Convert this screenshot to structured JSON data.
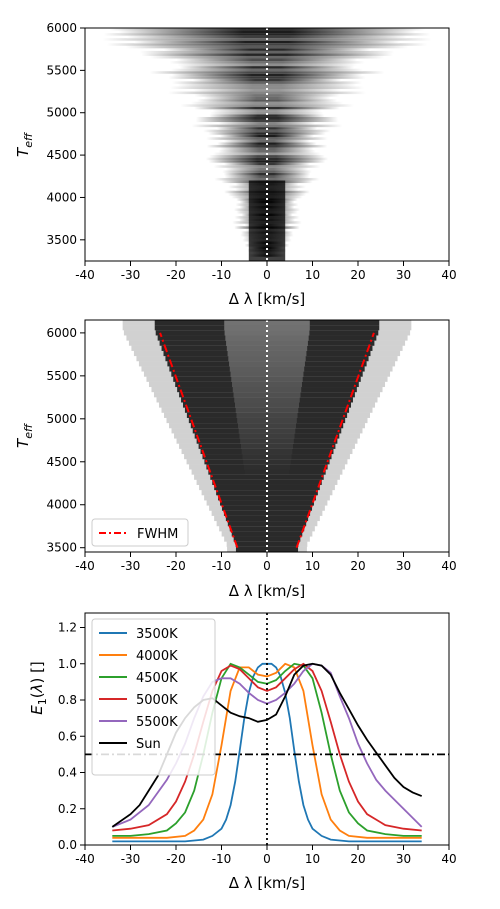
{
  "colors": {
    "tab_blue": "#1f77b4",
    "tab_orange": "#ff7f0e",
    "tab_green": "#2ca02c",
    "tab_red": "#d62728",
    "tab_purple": "#9467bd",
    "black": "#000000",
    "fwhm_red": "#ff0000"
  },
  "chart_data": [
    {
      "type": "heatmap",
      "colormap": "white-to-black (gray_r)",
      "xlabel": "Δ λ [km/s]",
      "ylabel": "T_eff",
      "xlim": [
        -40,
        40
      ],
      "ylim": [
        3250,
        6000
      ],
      "xticks": [
        "-40",
        "-30",
        "-20",
        "-10",
        "0",
        "10",
        "20",
        "30",
        "40"
      ],
      "yticks": [
        "3500",
        "4000",
        "4500",
        "5000",
        "5500",
        "6000"
      ],
      "reference_line": {
        "x": 0,
        "style": "dotted white"
      },
      "description_values": {
        "teff_range": [
          3300,
          6000
        ],
        "half_width_kms_at_teff": [
          [
            3300,
            4
          ],
          [
            4000,
            8
          ],
          [
            5000,
            15
          ],
          [
            6000,
            33
          ]
        ]
      }
    },
    {
      "type": "heatmap",
      "colormap": "white-to-black (gray_r)",
      "xlabel": "Δ λ [km/s]",
      "ylabel": "T_eff",
      "xlim": [
        -40,
        40
      ],
      "ylim": [
        3450,
        6150
      ],
      "xticks": [
        "-40",
        "-30",
        "-20",
        "-10",
        "0",
        "10",
        "20",
        "30",
        "40"
      ],
      "yticks": [
        "3500",
        "4000",
        "4500",
        "5000",
        "5500",
        "6000"
      ],
      "reference_line": {
        "x": 0,
        "style": "dotted white"
      },
      "series": [
        {
          "name": "FWHM",
          "style": "dash-dot red",
          "left": {
            "x": [
              -6.5,
              -23.5
            ],
            "y": [
              3500,
              6000
            ]
          },
          "right": {
            "x": [
              6.5,
              23.5
            ],
            "y": [
              3500,
              6000
            ]
          }
        }
      ],
      "legend": {
        "position": "lower-left",
        "entries": [
          "FWHM"
        ]
      }
    },
    {
      "type": "line",
      "xlabel": "Δ λ [km/s]",
      "ylabel": "E_1(λ) []",
      "xlim": [
        -40,
        40
      ],
      "ylim": [
        0,
        1.28
      ],
      "xticks": [
        "-40",
        "-30",
        "-20",
        "-10",
        "0",
        "10",
        "20",
        "30",
        "40"
      ],
      "yticks": [
        "0.0",
        "0.2",
        "0.4",
        "0.6",
        "0.8",
        "1.0",
        "1.2"
      ],
      "hline": {
        "y": 0.5,
        "style": "dash-dot black"
      },
      "vline": {
        "x": 0,
        "style": "dotted black"
      },
      "legend": {
        "position": "top-left"
      },
      "series": [
        {
          "name": "3500K",
          "color": "#1f77b4",
          "x": [
            -34,
            -30,
            -26,
            -22,
            -18,
            -14,
            -12,
            -10,
            -9,
            -8,
            -7,
            -6,
            -5,
            -4,
            -3,
            -2,
            -1,
            0,
            1,
            2,
            3,
            4,
            5,
            6,
            7,
            8,
            9,
            10,
            12,
            14,
            18,
            22,
            26,
            30,
            34
          ],
          "y": [
            0.02,
            0.02,
            0.02,
            0.02,
            0.02,
            0.03,
            0.05,
            0.09,
            0.14,
            0.22,
            0.35,
            0.52,
            0.7,
            0.84,
            0.93,
            0.98,
            1.0,
            1.0,
            1.0,
            0.98,
            0.93,
            0.84,
            0.7,
            0.52,
            0.35,
            0.22,
            0.14,
            0.09,
            0.05,
            0.03,
            0.02,
            0.02,
            0.02,
            0.02,
            0.02
          ]
        },
        {
          "name": "4000K",
          "color": "#ff7f0e",
          "x": [
            -34,
            -30,
            -26,
            -22,
            -18,
            -16,
            -14,
            -12,
            -10,
            -8,
            -6,
            -4,
            -2,
            0,
            2,
            4,
            6,
            8,
            10,
            12,
            14,
            16,
            18,
            22,
            26,
            30,
            34
          ],
          "y": [
            0.04,
            0.04,
            0.04,
            0.04,
            0.05,
            0.08,
            0.14,
            0.28,
            0.55,
            0.85,
            0.98,
            0.98,
            0.94,
            0.93,
            0.95,
            1.0,
            0.98,
            0.85,
            0.55,
            0.28,
            0.14,
            0.08,
            0.05,
            0.04,
            0.04,
            0.04,
            0.04
          ]
        },
        {
          "name": "4500K",
          "color": "#2ca02c",
          "x": [
            -34,
            -30,
            -26,
            -22,
            -20,
            -18,
            -16,
            -14,
            -12,
            -10,
            -8,
            -6,
            -4,
            -2,
            0,
            2,
            4,
            6,
            8,
            10,
            12,
            14,
            16,
            18,
            20,
            22,
            26,
            30,
            34
          ],
          "y": [
            0.05,
            0.05,
            0.06,
            0.08,
            0.12,
            0.18,
            0.3,
            0.5,
            0.73,
            0.92,
            1.0,
            0.98,
            0.94,
            0.9,
            0.89,
            0.91,
            0.96,
            1.0,
            0.99,
            0.92,
            0.73,
            0.5,
            0.3,
            0.18,
            0.12,
            0.08,
            0.06,
            0.05,
            0.05
          ]
        },
        {
          "name": "5000K",
          "color": "#d62728",
          "x": [
            -34,
            -30,
            -26,
            -22,
            -20,
            -18,
            -16,
            -14,
            -12,
            -10,
            -8,
            -6,
            -4,
            -2,
            0,
            2,
            4,
            6,
            8,
            10,
            12,
            14,
            16,
            18,
            20,
            22,
            26,
            30,
            34
          ],
          "y": [
            0.08,
            0.09,
            0.11,
            0.17,
            0.24,
            0.35,
            0.5,
            0.68,
            0.85,
            0.96,
            0.99,
            0.97,
            0.92,
            0.87,
            0.85,
            0.87,
            0.92,
            0.97,
            1.0,
            0.96,
            0.85,
            0.68,
            0.5,
            0.35,
            0.24,
            0.17,
            0.11,
            0.09,
            0.08
          ]
        },
        {
          "name": "5500K",
          "color": "#9467bd",
          "x": [
            -34,
            -30,
            -26,
            -22,
            -20,
            -18,
            -16,
            -14,
            -12,
            -10,
            -8,
            -6,
            -4,
            -2,
            0,
            2,
            4,
            6,
            8,
            10,
            12,
            14,
            16,
            18,
            20,
            22,
            24,
            26,
            30,
            34
          ],
          "y": [
            0.1,
            0.14,
            0.22,
            0.36,
            0.45,
            0.56,
            0.7,
            0.82,
            0.9,
            0.92,
            0.92,
            0.89,
            0.84,
            0.8,
            0.78,
            0.8,
            0.84,
            0.89,
            0.96,
            1.0,
            0.99,
            0.95,
            0.82,
            0.7,
            0.56,
            0.45,
            0.36,
            0.3,
            0.2,
            0.1
          ]
        },
        {
          "name": "Sun",
          "color": "#000000",
          "x": [
            -34,
            -30,
            -28,
            -26,
            -24,
            -22,
            -20,
            -18,
            -16,
            -14,
            -12,
            -10,
            -8,
            -6,
            -4,
            -2,
            0,
            2,
            4,
            6,
            8,
            10,
            12,
            14,
            16,
            18,
            20,
            22,
            24,
            26,
            28,
            30,
            32,
            34
          ],
          "y": [
            0.1,
            0.17,
            0.22,
            0.3,
            0.38,
            0.5,
            0.62,
            0.7,
            0.76,
            0.8,
            0.81,
            0.77,
            0.73,
            0.71,
            0.7,
            0.68,
            0.69,
            0.72,
            0.82,
            0.94,
            0.99,
            1.0,
            0.99,
            0.94,
            0.84,
            0.75,
            0.66,
            0.58,
            0.51,
            0.44,
            0.37,
            0.32,
            0.29,
            0.27
          ]
        }
      ]
    }
  ]
}
